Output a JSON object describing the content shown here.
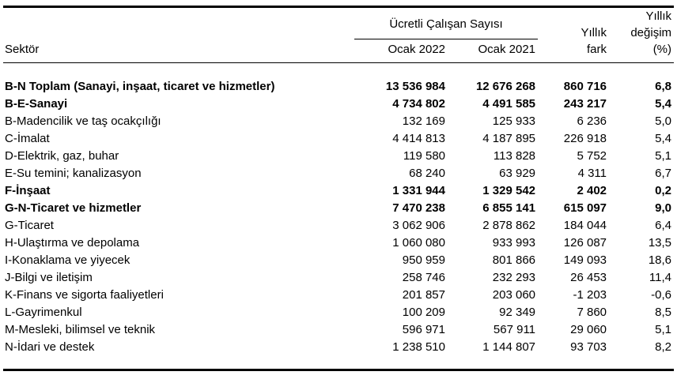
{
  "table": {
    "headers": {
      "sector": "Sektör",
      "group": "Ücretli Çalışan Sayısı",
      "year1": "Ocak 2022",
      "year2": "Ocak 2021",
      "fark": [
        "Yıllık",
        "fark"
      ],
      "degisim": [
        "Yıllık",
        "değişim",
        "(%)"
      ]
    },
    "rows": [
      {
        "sector": "B-N Toplam (Sanayi, inşaat, ticaret ve hizmetler)",
        "ocak2022": "13 536 984",
        "ocak2021": "12 676 268",
        "fark": "860 716",
        "degisim": "6,8",
        "bold": true
      },
      {
        "sector": "B-E-Sanayi",
        "ocak2022": "4 734 802",
        "ocak2021": "4 491 585",
        "fark": "243 217",
        "degisim": "5,4",
        "bold": true
      },
      {
        "sector": "B-Madencilik ve taş ocakçılığı",
        "ocak2022": "132 169",
        "ocak2021": "125 933",
        "fark": "6 236",
        "degisim": "5,0",
        "bold": false
      },
      {
        "sector": "C-İmalat",
        "ocak2022": "4 414 813",
        "ocak2021": "4 187 895",
        "fark": "226 918",
        "degisim": "5,4",
        "bold": false
      },
      {
        "sector": "D-Elektrik, gaz, buhar",
        "ocak2022": "119 580",
        "ocak2021": "113 828",
        "fark": "5 752",
        "degisim": "5,1",
        "bold": false
      },
      {
        "sector": "E-Su temini; kanalizasyon",
        "ocak2022": "68 240",
        "ocak2021": "63 929",
        "fark": "4 311",
        "degisim": "6,7",
        "bold": false
      },
      {
        "sector": "F-İnşaat",
        "ocak2022": "1 331 944",
        "ocak2021": "1 329 542",
        "fark": "2 402",
        "degisim": "0,2",
        "bold": true
      },
      {
        "sector": "G-N-Ticaret ve hizmetler",
        "ocak2022": "7 470 238",
        "ocak2021": "6 855 141",
        "fark": "615 097",
        "degisim": "9,0",
        "bold": true
      },
      {
        "sector": "G-Ticaret",
        "ocak2022": "3 062 906",
        "ocak2021": "2 878 862",
        "fark": "184 044",
        "degisim": "6,4",
        "bold": false
      },
      {
        "sector": "H-Ulaştırma ve depolama",
        "ocak2022": "1 060 080",
        "ocak2021": "933 993",
        "fark": "126 087",
        "degisim": "13,5",
        "bold": false
      },
      {
        "sector": "I-Konaklama ve yiyecek",
        "ocak2022": "950 959",
        "ocak2021": "801 866",
        "fark": "149 093",
        "degisim": "18,6",
        "bold": false
      },
      {
        "sector": "J-Bilgi ve iletişim",
        "ocak2022": "258 746",
        "ocak2021": "232 293",
        "fark": "26 453",
        "degisim": "11,4",
        "bold": false
      },
      {
        "sector": "K-Finans ve sigorta faaliyetleri",
        "ocak2022": "201 857",
        "ocak2021": "203 060",
        "fark": "-1 203",
        "degisim": "-0,6",
        "bold": false
      },
      {
        "sector": "L-Gayrimenkul",
        "ocak2022": "100 209",
        "ocak2021": "92 349",
        "fark": "7 860",
        "degisim": "8,5",
        "bold": false
      },
      {
        "sector": "M-Mesleki, bilimsel ve teknik",
        "ocak2022": "596 971",
        "ocak2021": "567 911",
        "fark": "29 060",
        "degisim": "5,1",
        "bold": false
      },
      {
        "sector": "N-İdari ve destek",
        "ocak2022": "1 238 510",
        "ocak2021": "1 144 807",
        "fark": "93 703",
        "degisim": "8,2",
        "bold": false
      }
    ]
  }
}
